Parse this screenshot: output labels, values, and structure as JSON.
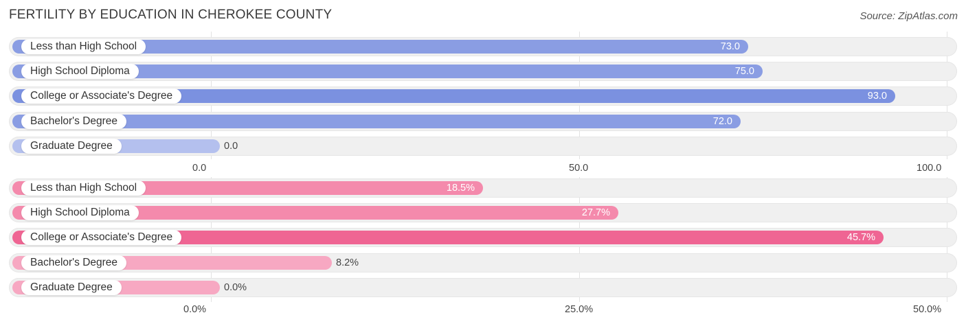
{
  "title": "FERTILITY BY EDUCATION IN CHEROKEE COUNTY",
  "source": "Source: ZipAtlas.com",
  "colors": {
    "blue_main": "#8a9de3",
    "blue_highlight": "#7b91e0",
    "blue_light": "#b4c0ee",
    "pink_main": "#f48aac",
    "pink_highlight": "#ef6593",
    "pink_light": "#f7a8c2"
  },
  "chart_data": [
    {
      "type": "bar",
      "orientation": "horizontal",
      "categories": [
        "Less than High School",
        "High School Diploma",
        "College or Associate's Degree",
        "Bachelor's Degree",
        "Graduate Degree"
      ],
      "values": [
        73.0,
        75.0,
        93.0,
        72.0,
        0.0
      ],
      "value_labels": [
        "73.0",
        "75.0",
        "93.0",
        "72.0",
        "0.0"
      ],
      "xlim": [
        0,
        100
      ],
      "ticks": [
        "0.0",
        "50.0",
        "100.0"
      ],
      "tick_values": [
        0,
        50,
        100
      ]
    },
    {
      "type": "bar",
      "orientation": "horizontal",
      "categories": [
        "Less than High School",
        "High School Diploma",
        "College or Associate's Degree",
        "Bachelor's Degree",
        "Graduate Degree"
      ],
      "values": [
        18.5,
        27.7,
        45.7,
        8.2,
        0.0
      ],
      "value_labels": [
        "18.5%",
        "27.7%",
        "45.7%",
        "8.2%",
        "0.0%"
      ],
      "xlim": [
        0,
        50
      ],
      "ticks": [
        "0.0%",
        "25.0%",
        "50.0%"
      ],
      "tick_values": [
        0,
        25,
        50
      ]
    }
  ]
}
